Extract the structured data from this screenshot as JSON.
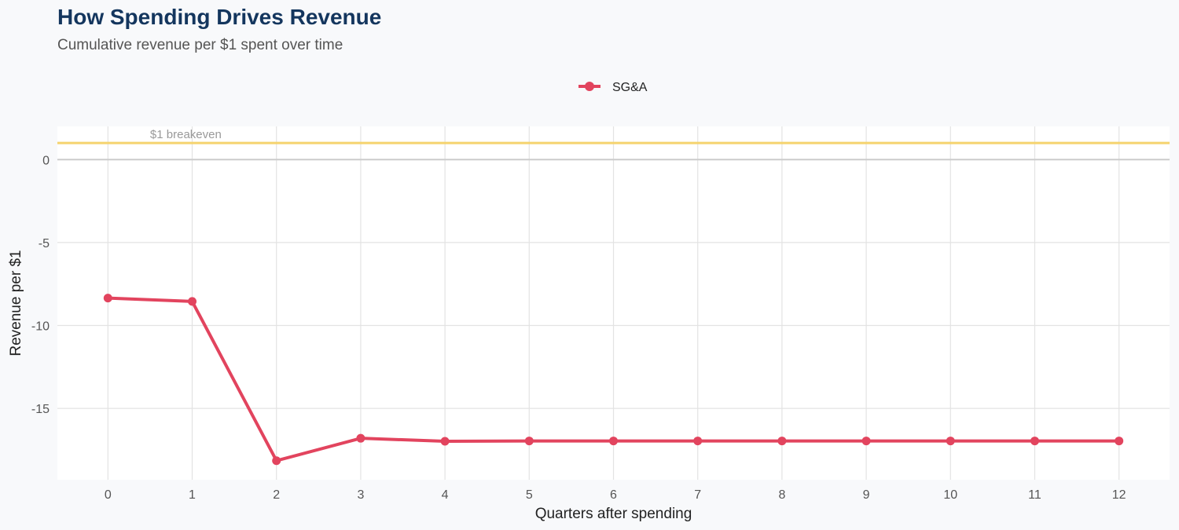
{
  "header": {
    "title": "How Spending Drives Revenue",
    "subtitle": "Cumulative revenue per $1 spent over time"
  },
  "chart_data": {
    "type": "line",
    "xlabel": "Quarters after spending",
    "ylabel": "Revenue per $1",
    "x": [
      0,
      1,
      2,
      3,
      4,
      5,
      6,
      7,
      8,
      9,
      10,
      11,
      12
    ],
    "xlim": [
      -0.6,
      12.6
    ],
    "ylim": [
      -19.3,
      2
    ],
    "yticks": [
      0,
      -5,
      -10,
      -15
    ],
    "ytick_labels": [
      "0",
      "-5",
      "-10",
      "-15"
    ],
    "grid": true,
    "legend": "top-center",
    "series": [
      {
        "name": "SG&A",
        "color": "#e2445e",
        "values": [
          -8.35,
          -8.55,
          -18.15,
          -16.8,
          -16.98,
          -16.96,
          -16.96,
          -16.96,
          -16.96,
          -16.96,
          -16.96,
          -16.96,
          -16.96
        ]
      }
    ],
    "reference_line": {
      "value": 1,
      "label": "$1 breakeven",
      "color": "#f5d36e"
    }
  }
}
